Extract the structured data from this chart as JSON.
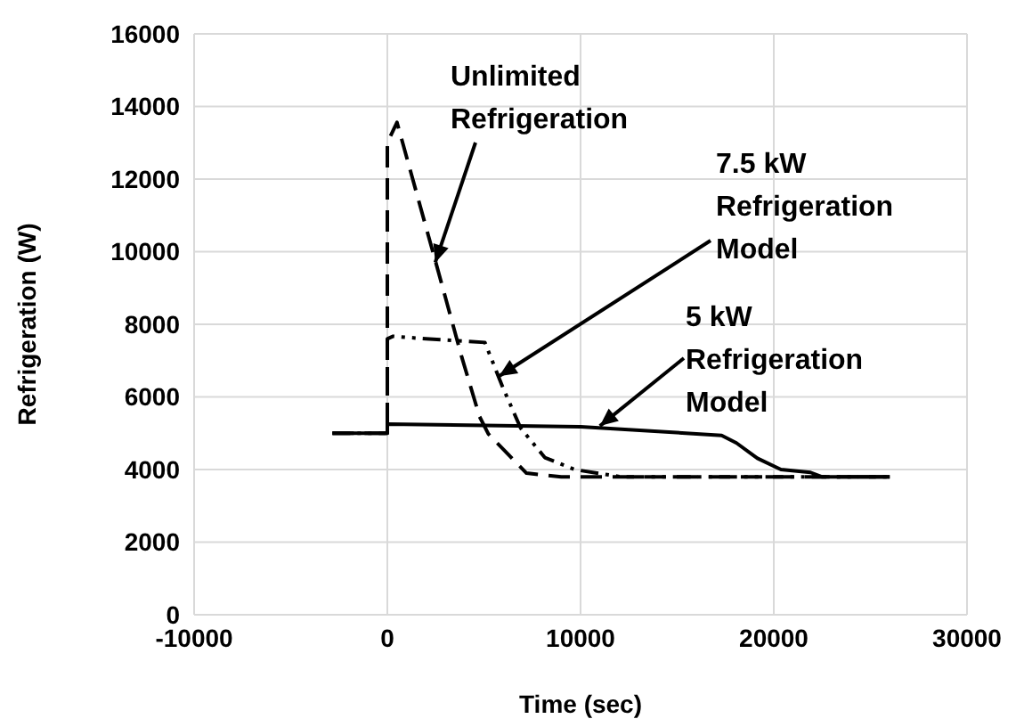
{
  "chart_data": {
    "type": "line",
    "xlabel": "Time (sec)",
    "ylabel": "Refrigeration (W)",
    "xlim": [
      -10000,
      30000
    ],
    "xticks": [
      -10000,
      0,
      10000,
      20000,
      30000
    ],
    "ylim": [
      0,
      16000
    ],
    "yticks": [
      0,
      2000,
      4000,
      6000,
      8000,
      10000,
      12000,
      14000,
      16000
    ],
    "grid": true,
    "marker": "none",
    "series": [
      {
        "color": "#000000",
        "line_style": "dashed",
        "x": [
          -2840,
          0,
          0,
          500,
          2500,
          3850,
          4770,
          5230,
          7200,
          9000,
          26000
        ],
        "values": [
          5000,
          5000,
          13000,
          13560,
          9720,
          7100,
          5460,
          4980,
          3900,
          3800,
          3800
        ]
      },
      {
        "color": "#000000",
        "line_style": "dotted",
        "x": [
          -2840,
          0,
          0,
          300,
          2000,
          5050,
          5960,
          6900,
          8150,
          9680,
          12100,
          26000
        ],
        "values": [
          5000,
          5000,
          7600,
          7670,
          7600,
          7500,
          6280,
          5140,
          4330,
          4000,
          3800,
          3800
        ]
      },
      {
        "color": "#000000",
        "line_style": "solid",
        "x": [
          -2840,
          0,
          0,
          10000,
          17300,
          18070,
          19150,
          20370,
          21900,
          22480,
          26000
        ],
        "values": [
          5000,
          5000,
          5250,
          5180,
          4940,
          4730,
          4310,
          4000,
          3920,
          3800,
          3800
        ]
      }
    ],
    "annotations": [
      {
        "text": "Unlimited\nRefrigeration",
        "x": 2480,
        "y": 9700
      },
      {
        "text": "7.5 kW\nRefrigeration\nModel",
        "x": 5780,
        "y": 6570
      },
      {
        "text": "5 kW\nRefrigeration\nModel",
        "x": 11000,
        "y": 5200
      }
    ]
  }
}
